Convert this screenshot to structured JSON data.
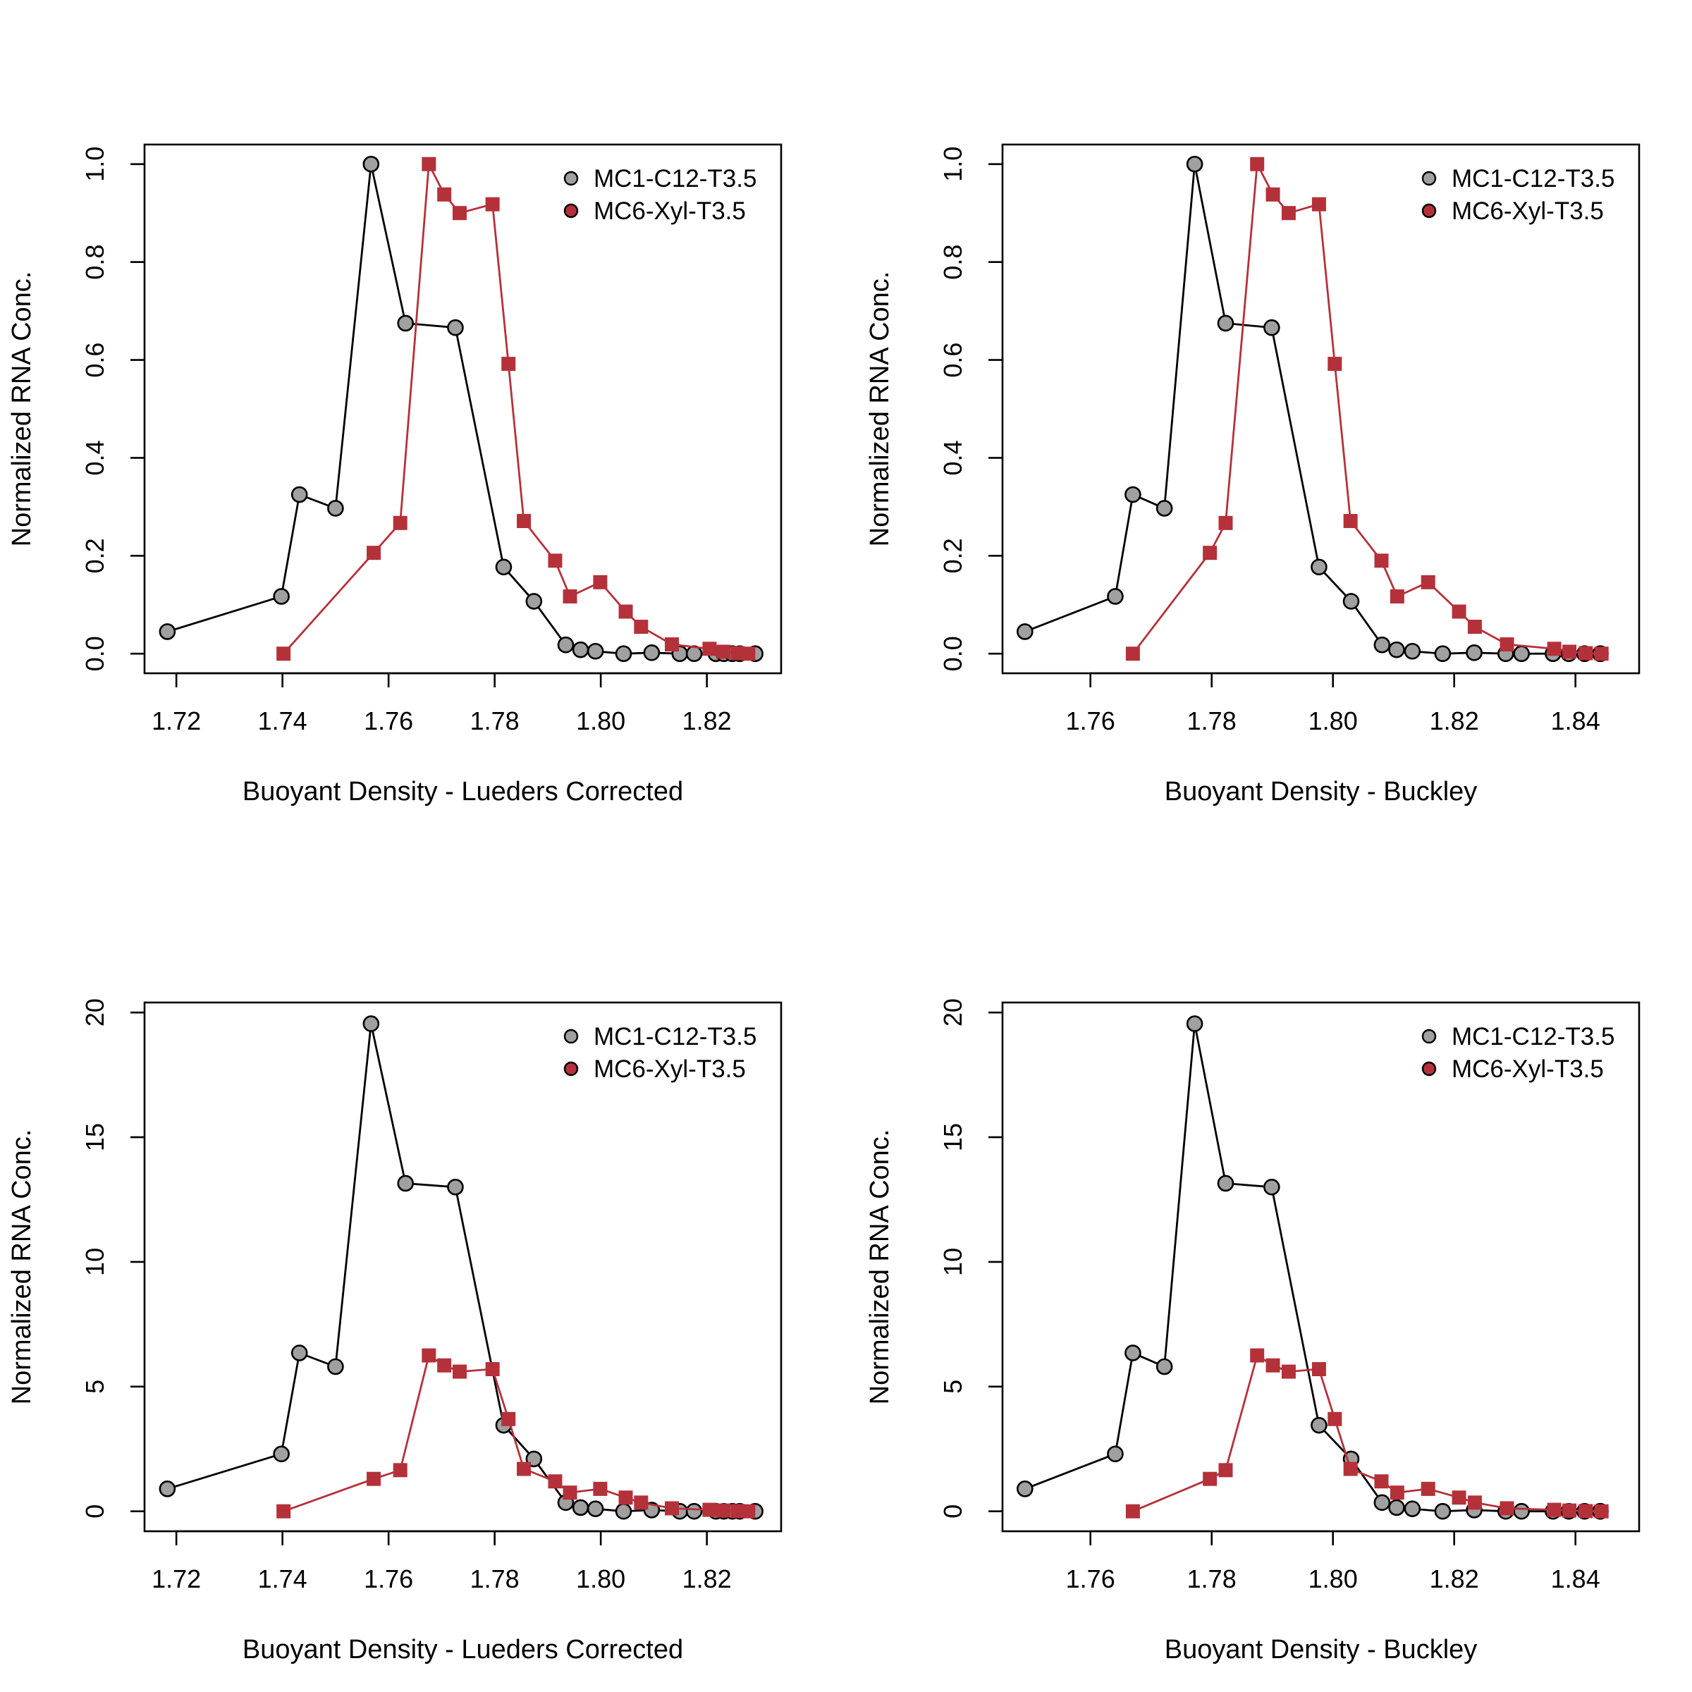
{
  "colors": {
    "series1_fill": "#a0a0a0",
    "series1_line": "#000000",
    "series2_fill": "#b5313a",
    "series2_line": "#b5313a"
  },
  "chart_data": [
    {
      "type": "line",
      "xlabel": "Buoyant Density - Lueders Corrected",
      "ylabel": "Normalized RNA Conc.",
      "xlim": [
        1.714,
        1.834
      ],
      "ylim": [
        -0.04,
        1.04
      ],
      "xticks": [
        "1.72",
        "1.74",
        "1.76",
        "1.78",
        "1.80",
        "1.82"
      ],
      "yticks": [
        "0.0",
        "0.2",
        "0.4",
        "0.6",
        "0.8",
        "1.0"
      ],
      "legend": [
        "MC1-C12-T3.5",
        "MC6-Xyl-T3.5"
      ],
      "legend_position": "top-right",
      "series": [
        {
          "name": "MC1-C12-T3.5",
          "marker": "circle",
          "x": [
            1.7183,
            1.7398,
            1.7432,
            1.75,
            1.7567,
            1.7632,
            1.7726,
            1.7817,
            1.7874,
            1.7934,
            1.7962,
            1.799,
            1.8043,
            1.8096,
            1.8149,
            1.8176,
            1.8217,
            1.8232,
            1.8248,
            1.8262,
            1.8291
          ],
          "y": [
            0.045,
            0.117,
            0.325,
            0.297,
            1.0,
            0.675,
            0.666,
            0.177,
            0.107,
            0.018,
            0.008,
            0.005,
            0.0,
            0.002,
            0.0,
            0.0,
            0.0,
            0.0,
            0.0,
            0.0,
            0.0
          ]
        },
        {
          "name": "MC6-Xyl-T3.5",
          "marker": "square",
          "x": [
            1.7402,
            1.7572,
            1.7622,
            1.7676,
            1.7705,
            1.7734,
            1.7796,
            1.7826,
            1.7855,
            1.7914,
            1.7942,
            1.7999,
            1.8047,
            1.8076,
            1.8134,
            1.8205,
            1.8231,
            1.8258,
            1.8278
          ],
          "y": [
            0.0,
            0.206,
            0.267,
            1.0,
            0.938,
            0.9,
            0.918,
            0.592,
            0.271,
            0.19,
            0.117,
            0.146,
            0.086,
            0.055,
            0.019,
            0.01,
            0.004,
            0.001,
            0.0
          ]
        }
      ]
    },
    {
      "type": "line",
      "xlabel": "Buoyant Density - Buckley",
      "ylabel": "Normalized RNA Conc.",
      "xlim": [
        1.7455,
        1.8505
      ],
      "ylim": [
        -0.04,
        1.04
      ],
      "xticks": [
        "1.76",
        "1.78",
        "1.80",
        "1.82",
        "1.84"
      ],
      "yticks": [
        "0.0",
        "0.2",
        "0.4",
        "0.6",
        "0.8",
        "1.0"
      ],
      "legend": [
        "MC1-C12-T3.5",
        "MC6-Xyl-T3.5"
      ],
      "legend_position": "top-right",
      "series": [
        {
          "name": "MC1-C12-T3.5",
          "marker": "circle",
          "x": [
            1.7492,
            1.7641,
            1.767,
            1.7722,
            1.7772,
            1.7823,
            1.7899,
            1.7977,
            1.803,
            1.8081,
            1.8105,
            1.8131,
            1.8181,
            1.8233,
            1.8285,
            1.8311,
            1.8363,
            1.8389,
            1.8415,
            1.8441,
            1.8441
          ],
          "y": [
            0.045,
            0.117,
            0.325,
            0.297,
            1.0,
            0.675,
            0.666,
            0.177,
            0.107,
            0.018,
            0.008,
            0.005,
            0.0,
            0.002,
            0.0,
            0.0,
            0.0,
            0.0,
            0.0,
            0.0,
            0.0
          ]
        },
        {
          "name": "MC6-Xyl-T3.5",
          "marker": "square",
          "x": [
            1.767,
            1.7797,
            1.7823,
            1.7875,
            1.7901,
            1.7927,
            1.7977,
            1.8003,
            1.8029,
            1.808,
            1.8106,
            1.8157,
            1.8208,
            1.8234,
            1.8287,
            1.8365,
            1.839,
            1.8417,
            1.8443
          ],
          "y": [
            0.0,
            0.206,
            0.267,
            1.0,
            0.938,
            0.9,
            0.918,
            0.592,
            0.271,
            0.19,
            0.117,
            0.146,
            0.086,
            0.055,
            0.019,
            0.01,
            0.004,
            0.001,
            0.0
          ]
        }
      ]
    },
    {
      "type": "line",
      "xlabel": "Buoyant Density - Lueders Corrected",
      "ylabel": "Normalized RNA Conc.",
      "xlim": [
        1.714,
        1.834
      ],
      "ylim": [
        -0.8,
        20.4
      ],
      "xticks": [
        "1.72",
        "1.74",
        "1.76",
        "1.78",
        "1.80",
        "1.82"
      ],
      "yticks": [
        "0",
        "5",
        "10",
        "15",
        "20"
      ],
      "legend": [
        "MC1-C12-T3.5",
        "MC6-Xyl-T3.5"
      ],
      "legend_position": "top-right",
      "series": [
        {
          "name": "MC1-C12-T3.5",
          "marker": "circle",
          "x": [
            1.7183,
            1.7398,
            1.7432,
            1.75,
            1.7567,
            1.7632,
            1.7726,
            1.7817,
            1.7874,
            1.7934,
            1.7962,
            1.799,
            1.8043,
            1.8096,
            1.8149,
            1.8176,
            1.8217,
            1.8232,
            1.8248,
            1.8262,
            1.8291
          ],
          "y": [
            0.9,
            2.3,
            6.35,
            5.8,
            19.55,
            13.15,
            13.0,
            3.45,
            2.1,
            0.35,
            0.15,
            0.1,
            0.0,
            0.05,
            0.0,
            0.0,
            0.0,
            0.0,
            0.0,
            0.0,
            0.0
          ]
        },
        {
          "name": "MC6-Xyl-T3.5",
          "marker": "square",
          "x": [
            1.7402,
            1.7572,
            1.7622,
            1.7676,
            1.7705,
            1.7734,
            1.7796,
            1.7826,
            1.7855,
            1.7914,
            1.7942,
            1.7999,
            1.8047,
            1.8076,
            1.8134,
            1.8205,
            1.8231,
            1.8258,
            1.8278
          ],
          "y": [
            0.0,
            1.3,
            1.65,
            6.25,
            5.85,
            5.6,
            5.7,
            3.7,
            1.7,
            1.2,
            0.75,
            0.9,
            0.55,
            0.35,
            0.12,
            0.06,
            0.03,
            0.01,
            0.0
          ]
        }
      ]
    },
    {
      "type": "line",
      "xlabel": "Buoyant Density - Buckley",
      "ylabel": "Normalized RNA Conc.",
      "xlim": [
        1.7455,
        1.8505
      ],
      "ylim": [
        -0.8,
        20.4
      ],
      "xticks": [
        "1.76",
        "1.78",
        "1.80",
        "1.82",
        "1.84"
      ],
      "yticks": [
        "0",
        "5",
        "10",
        "15",
        "20"
      ],
      "legend": [
        "MC1-C12-T3.5",
        "MC6-Xyl-T3.5"
      ],
      "legend_position": "top-right",
      "series": [
        {
          "name": "MC1-C12-T3.5",
          "marker": "circle",
          "x": [
            1.7492,
            1.7641,
            1.767,
            1.7722,
            1.7772,
            1.7823,
            1.7899,
            1.7977,
            1.803,
            1.8081,
            1.8105,
            1.8131,
            1.8181,
            1.8233,
            1.8285,
            1.8311,
            1.8363,
            1.8389,
            1.8415,
            1.8441,
            1.8441
          ],
          "y": [
            0.9,
            2.3,
            6.35,
            5.8,
            19.55,
            13.15,
            13.0,
            3.45,
            2.1,
            0.35,
            0.15,
            0.1,
            0.0,
            0.05,
            0.0,
            0.0,
            0.0,
            0.0,
            0.0,
            0.0,
            0.0
          ]
        },
        {
          "name": "MC6-Xyl-T3.5",
          "marker": "square",
          "x": [
            1.767,
            1.7797,
            1.7823,
            1.7875,
            1.7901,
            1.7927,
            1.7977,
            1.8003,
            1.8029,
            1.808,
            1.8106,
            1.8157,
            1.8208,
            1.8234,
            1.8287,
            1.8365,
            1.839,
            1.8417,
            1.8443
          ],
          "y": [
            0.0,
            1.3,
            1.65,
            6.25,
            5.85,
            5.6,
            5.7,
            3.7,
            1.7,
            1.2,
            0.75,
            0.9,
            0.55,
            0.35,
            0.12,
            0.06,
            0.03,
            0.01,
            0.0
          ]
        }
      ]
    }
  ]
}
